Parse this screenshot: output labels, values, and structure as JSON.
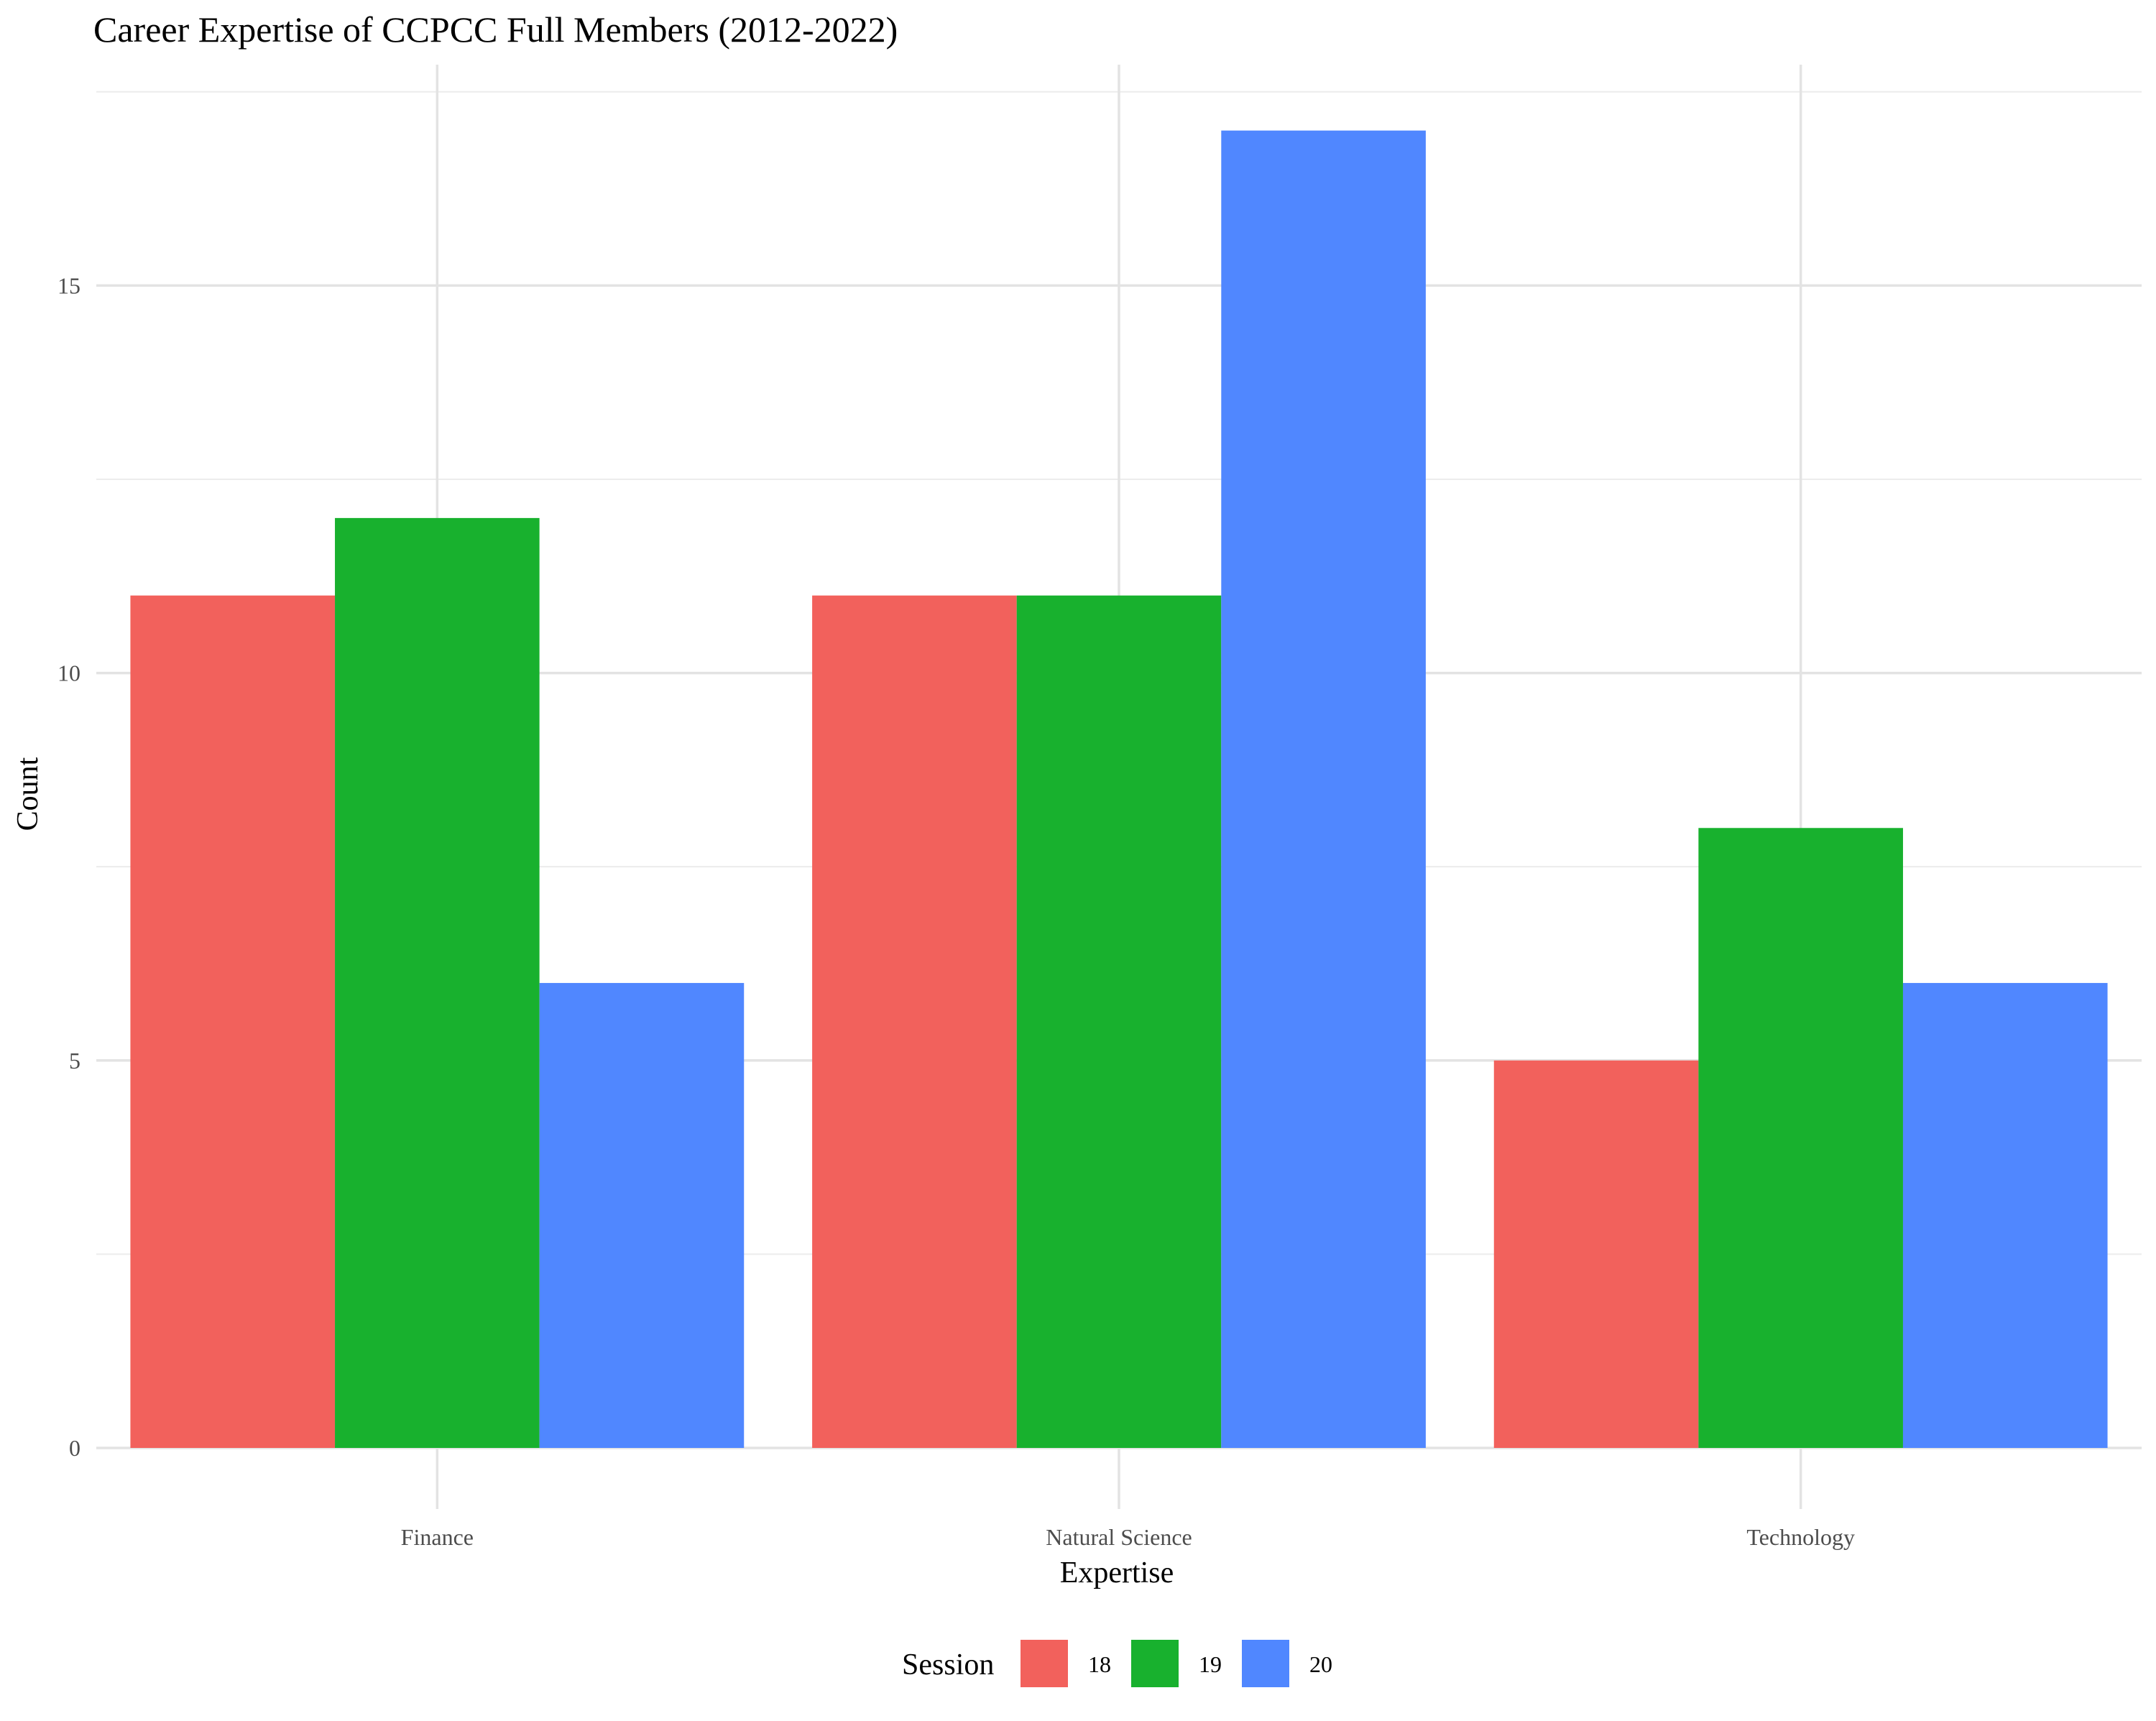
{
  "chart_data": {
    "type": "bar",
    "title": "Career Expertise of CCPCC Full Members (2012-2022)",
    "xlabel": "Expertise",
    "ylabel": "Count",
    "categories": [
      "Finance",
      "Natural Science",
      "Technology"
    ],
    "series": [
      {
        "name": "18",
        "color": "#F2615C",
        "values": [
          11,
          11,
          5
        ]
      },
      {
        "name": "19",
        "color": "#18B12E",
        "values": [
          12,
          11,
          8
        ]
      },
      {
        "name": "20",
        "color": "#5087FF",
        "values": [
          6,
          17,
          6
        ]
      }
    ],
    "yticks": [
      0,
      5,
      10,
      15
    ],
    "ytick_labels": [
      "0",
      "5",
      "10",
      "15"
    ],
    "ylim": [
      0,
      17.85
    ],
    "grid": true,
    "legend": {
      "title": "Session",
      "position": "bottom"
    }
  }
}
